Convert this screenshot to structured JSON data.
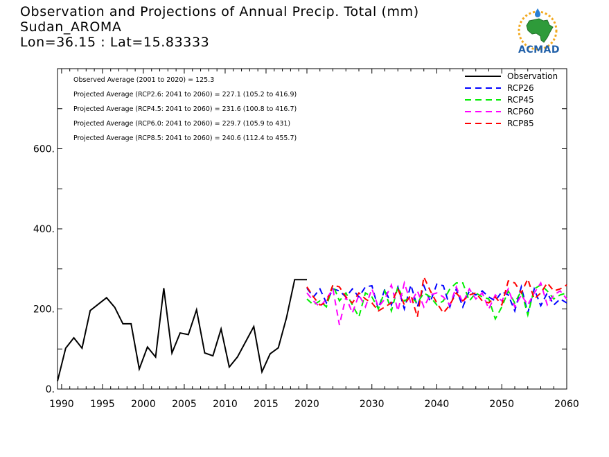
{
  "header": {
    "line1": "Observation and Projections of Annual Precip. Total (mm)",
    "line2": "Sudan_AROMA",
    "line3": "Lon=36.15 : Lat=15.83333"
  },
  "logo": {
    "text": "ACMAD",
    "icon": "africa-map-sun-logo"
  },
  "colors": {
    "observation": "#000000",
    "RCP26": "#0000ff",
    "RCP45": "#00ee00",
    "RCP60": "#ff00ff",
    "RCP85": "#ff0000"
  },
  "chart_data": {
    "type": "line",
    "xlabel": "",
    "ylabel": "",
    "xlim": [
      1989.5,
      2060
    ],
    "ylim": [
      0,
      800
    ],
    "x_ticks": [
      1990,
      1995,
      2000,
      2005,
      2010,
      2015,
      2020,
      2030,
      2040,
      2050,
      2060
    ],
    "x_tick_labels": [
      "1990",
      "1995",
      "2000",
      "2005",
      "2010",
      "2015",
      "2020",
      "2030",
      "2040",
      "2050",
      "2060"
    ],
    "y_ticks": [
      0,
      200,
      400,
      600
    ],
    "y_tick_labels": [
      "0.",
      "200.",
      "400.",
      "600."
    ],
    "legend_placement": "top-right",
    "annotations": [
      "Observed Average (2001 to 2020) = 125.3",
      "Projected Average (RCP2.6: 2041 to 2060) = 227.1 (105.2 to 416.9)",
      "Projected Average (RCP4.5: 2041 to 2060) = 231.6 (100.8 to 416.7)",
      "Projected Average (RCP6.0: 2041 to 2060) = 229.7 (105.9 to 431)",
      "Projected Average (RCP8.5: 2041 to 2060) = 240.6 (112.4 to 455.7)"
    ],
    "series": [
      {
        "name": "Observation",
        "style": "solid",
        "x": [
          1989.5,
          1990.5,
          1991.5,
          1992.5,
          1993.5,
          1994.5,
          1995.5,
          1996.5,
          1997.5,
          1998.5,
          1999.5,
          2000.5,
          2001.5,
          2002.5,
          2003.5,
          2004.5,
          2005.5,
          2006.5,
          2007.5,
          2008.5,
          2009.5,
          2010.5,
          2011.5,
          2012.5,
          2013.5,
          2014.5,
          2015.5,
          2016.5,
          2017.5,
          2018.5,
          2019.5,
          2020.0
        ],
        "values": [
          20,
          102,
          128,
          102,
          196,
          212,
          228,
          204,
          163,
          163,
          50,
          105,
          80,
          252,
          90,
          140,
          136,
          198,
          90,
          83,
          150,
          55,
          80,
          118,
          156,
          43,
          88,
          103,
          178,
          273,
          273,
          273
        ]
      },
      {
        "name": "RCP26",
        "style": "dashed",
        "x": [
          2020,
          2021,
          2022,
          2023,
          2024,
          2025,
          2026,
          2027,
          2028,
          2029,
          2030,
          2031,
          2032,
          2033,
          2034,
          2035,
          2036,
          2037,
          2038,
          2039,
          2040,
          2041,
          2042,
          2043,
          2044,
          2045,
          2046,
          2047,
          2048,
          2049,
          2050,
          2051,
          2052,
          2053,
          2054,
          2055,
          2056,
          2057,
          2058,
          2059,
          2060
        ],
        "values": [
          252,
          230,
          250,
          215,
          250,
          245,
          230,
          250,
          230,
          255,
          258,
          200,
          250,
          210,
          255,
          200,
          260,
          205,
          258,
          218,
          262,
          258,
          205,
          250,
          205,
          245,
          235,
          245,
          230,
          220,
          243,
          235,
          195,
          255,
          190,
          250,
          208,
          240,
          210,
          225,
          215
        ]
      },
      {
        "name": "RCP45",
        "style": "dashed",
        "x": [
          2020,
          2021,
          2022,
          2023,
          2024,
          2025,
          2026,
          2027,
          2028,
          2029,
          2030,
          2031,
          2032,
          2033,
          2034,
          2035,
          2036,
          2037,
          2038,
          2039,
          2040,
          2041,
          2042,
          2043,
          2044,
          2045,
          2046,
          2047,
          2048,
          2049,
          2050,
          2051,
          2052,
          2053,
          2054,
          2055,
          2056,
          2057,
          2058,
          2059,
          2060
        ],
        "values": [
          225,
          210,
          220,
          205,
          260,
          220,
          240,
          210,
          180,
          240,
          230,
          200,
          245,
          195,
          255,
          220,
          230,
          215,
          240,
          230,
          210,
          220,
          250,
          265,
          265,
          220,
          240,
          230,
          225,
          175,
          205,
          245,
          215,
          245,
          185,
          250,
          260,
          245,
          225,
          235,
          240
        ]
      },
      {
        "name": "RCP60",
        "style": "dashed",
        "x": [
          2020,
          2021,
          2022,
          2023,
          2024,
          2025,
          2026,
          2027,
          2028,
          2029,
          2030,
          2031,
          2032,
          2033,
          2034,
          2035,
          2036,
          2037,
          2038,
          2039,
          2040,
          2041,
          2042,
          2043,
          2044,
          2045,
          2046,
          2047,
          2048,
          2049,
          2050,
          2051,
          2052,
          2053,
          2054,
          2055,
          2056,
          2057,
          2058,
          2059,
          2060
        ],
        "values": [
          240,
          220,
          205,
          225,
          250,
          160,
          230,
          190,
          235,
          205,
          250,
          205,
          225,
          260,
          195,
          265,
          215,
          245,
          205,
          235,
          240,
          230,
          210,
          255,
          215,
          250,
          225,
          240,
          200,
          235,
          220,
          250,
          205,
          235,
          210,
          240,
          265,
          210,
          235,
          245,
          225
        ]
      },
      {
        "name": "RCP85",
        "style": "dashed",
        "x": [
          2020,
          2021,
          2022,
          2023,
          2024,
          2025,
          2026,
          2027,
          2028,
          2029,
          2030,
          2031,
          2032,
          2033,
          2034,
          2035,
          2036,
          2037,
          2038,
          2039,
          2040,
          2041,
          2042,
          2043,
          2044,
          2045,
          2046,
          2047,
          2048,
          2049,
          2050,
          2051,
          2052,
          2053,
          2054,
          2055,
          2056,
          2057,
          2058,
          2059,
          2060
        ],
        "values": [
          255,
          230,
          210,
          215,
          260,
          255,
          230,
          215,
          240,
          225,
          215,
          195,
          205,
          215,
          250,
          210,
          235,
          180,
          280,
          245,
          215,
          190,
          210,
          240,
          220,
          235,
          240,
          220,
          215,
          230,
          210,
          270,
          265,
          240,
          275,
          225,
          240,
          265,
          245,
          250,
          260
        ]
      }
    ]
  }
}
